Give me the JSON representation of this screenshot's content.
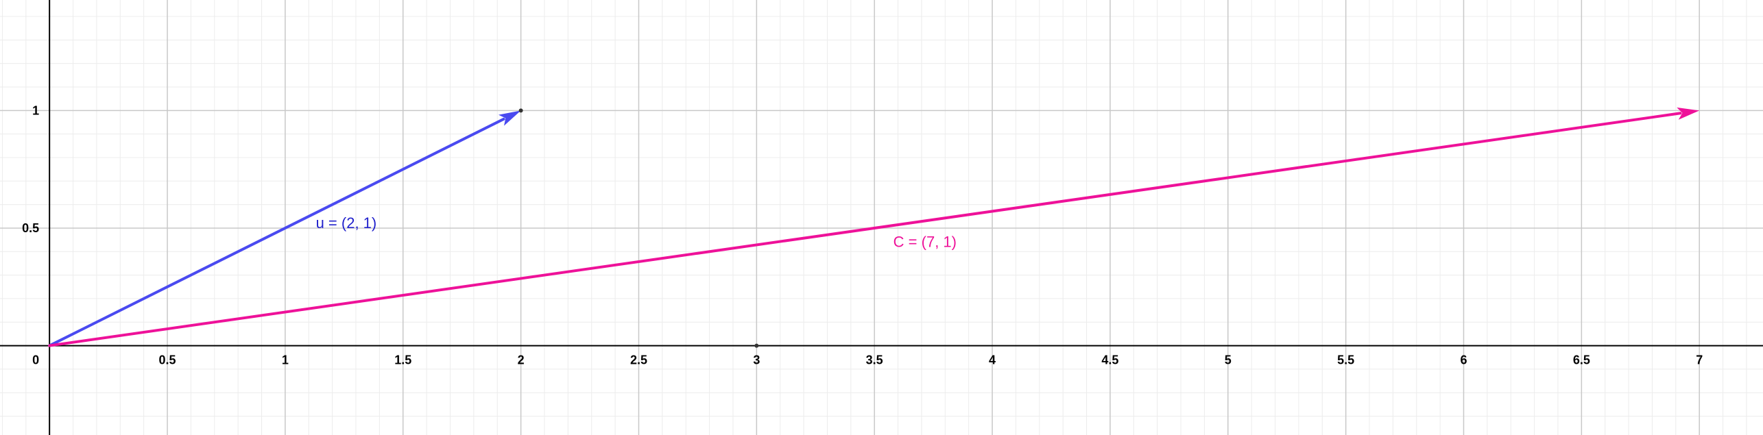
{
  "chart_data": {
    "type": "scatter",
    "xlim": [
      -0.21,
      7.27
    ],
    "ylim": [
      -0.38,
      1.47
    ],
    "grid": true,
    "minor_grid": true,
    "x_ticks": [
      0,
      0.5,
      1,
      1.5,
      2,
      2.5,
      3,
      3.5,
      4,
      4.5,
      5,
      5.5,
      6,
      6.5,
      7
    ],
    "x_tick_labels": [
      "0",
      "0.5",
      "1",
      "1.5",
      "2",
      "2.5",
      "3",
      "3.5",
      "4",
      "4.5",
      "5",
      "5.5",
      "6",
      "6.5",
      "7"
    ],
    "y_ticks": [
      0.5,
      1
    ],
    "y_tick_labels": [
      "0.5",
      "1"
    ],
    "vectors": [
      {
        "name": "u",
        "from": [
          0,
          0
        ],
        "to": [
          2,
          1
        ],
        "label": "u = (2, 1)",
        "color": "#4a4af0",
        "label_color": "#2222cc",
        "label_at": [
          1.13,
          0.5
        ]
      },
      {
        "name": "C",
        "from": [
          0,
          0
        ],
        "to": [
          7,
          1
        ],
        "label": "C = (7, 1)",
        "color": "#ee1199",
        "label_color": "#ee1199",
        "label_at": [
          3.58,
          0.42
        ]
      }
    ],
    "points": [
      {
        "x": 2,
        "y": 1
      },
      {
        "x": 3,
        "y": 0
      }
    ]
  }
}
